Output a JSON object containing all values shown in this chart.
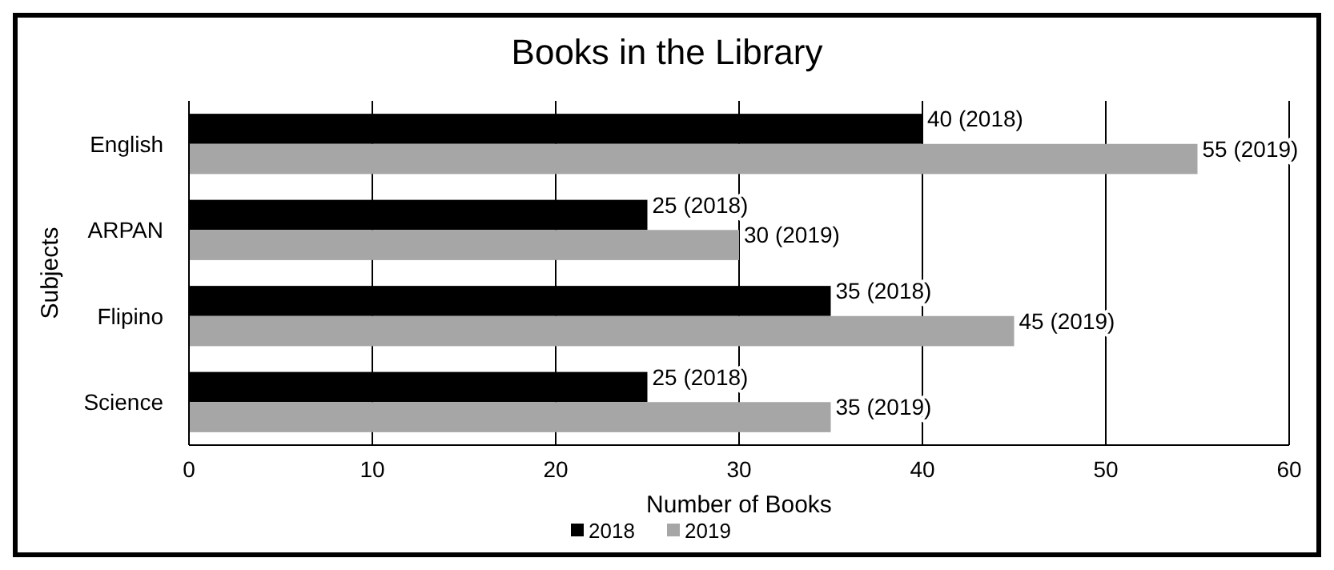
{
  "chart_data": {
    "type": "bar",
    "orientation": "horizontal",
    "title": "Books in the Library",
    "xlabel": "Number of Books",
    "ylabel": "Subjects",
    "categories": [
      "English",
      "ARPAN",
      "Flipino",
      "Science"
    ],
    "series": [
      {
        "name": "2018",
        "color": "#000000",
        "values": [
          40,
          25,
          35,
          25
        ],
        "value_labels": [
          "40 (2018)",
          "25 (2018)",
          "35 (2018)",
          "25 (2018)"
        ]
      },
      {
        "name": "2019",
        "color": "#a6a6a6",
        "values": [
          55,
          30,
          45,
          35
        ],
        "value_labels": [
          "55 (2019)",
          "30 (2019)",
          "45 (2019)",
          "35 (2019)"
        ]
      }
    ],
    "xlim": [
      0,
      60
    ],
    "xticks": [
      0,
      10,
      20,
      30,
      40,
      50,
      60
    ],
    "grid": "x",
    "legend": "bottom"
  }
}
